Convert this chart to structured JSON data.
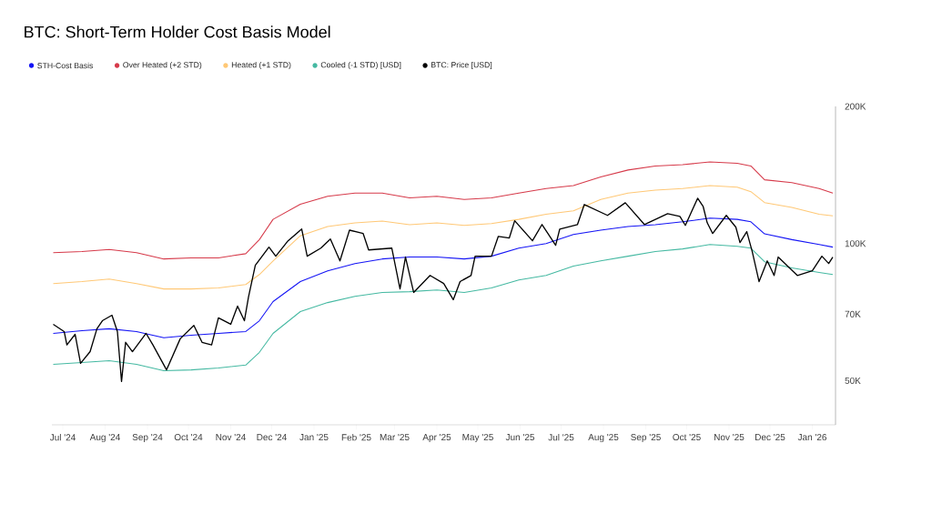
{
  "chart_data": {
    "type": "line",
    "title": "BTC: Short-Term Holder Cost Basis Model",
    "x": [
      "2024-06-24",
      "2024-07-15",
      "2024-08-04",
      "2024-08-24",
      "2024-09-13",
      "2024-10-03",
      "2024-10-23",
      "2024-11-12",
      "2024-11-22",
      "2024-12-02",
      "2024-12-22",
      "2025-01-11",
      "2025-01-31",
      "2025-02-20",
      "2025-03-12",
      "2025-04-01",
      "2025-04-21",
      "2025-05-11",
      "2025-05-31",
      "2025-06-20",
      "2025-07-10",
      "2025-07-30",
      "2025-08-19",
      "2025-09-08",
      "2025-09-28",
      "2025-10-18",
      "2025-11-07",
      "2025-11-17",
      "2025-11-27",
      "2025-12-17",
      "2026-01-06",
      "2026-01-16"
    ],
    "series": [
      {
        "name": "STH-Cost Basis",
        "color": "#1414f5",
        "values": [
          63500,
          64400,
          65000,
          64100,
          62100,
          62900,
          63500,
          64100,
          67700,
          74600,
          82500,
          87100,
          90400,
          92500,
          93400,
          93400,
          92500,
          93800,
          97700,
          100000,
          104700,
          107000,
          109000,
          110000,
          111600,
          113700,
          113000,
          111600,
          105000,
          102000,
          99500,
          98200
        ]
      },
      {
        "name": "Over Heated (+2 STD)",
        "color": "#d63a4a",
        "values": [
          95500,
          96000,
          97000,
          95500,
          92500,
          93000,
          93000,
          95000,
          102000,
          113000,
          122000,
          127000,
          129000,
          129000,
          126000,
          127000,
          125000,
          126000,
          129000,
          132000,
          134000,
          140000,
          145000,
          148000,
          149000,
          151000,
          150000,
          148000,
          138000,
          136000,
          132000,
          129000
        ]
      },
      {
        "name": "Heated (+1 STD)",
        "color": "#ffc876",
        "values": [
          81700,
          82500,
          83600,
          81700,
          79500,
          79500,
          79900,
          81300,
          85500,
          91600,
          104000,
          109000,
          111000,
          112000,
          110000,
          111000,
          109600,
          110600,
          113000,
          116000,
          118000,
          125000,
          129000,
          131000,
          132000,
          134000,
          133000,
          130000,
          123000,
          120000,
          116000,
          115000
        ]
      },
      {
        "name": "Cooled (-1 STD) [USD]",
        "color": "#45b9a2",
        "values": [
          54300,
          54800,
          55300,
          54300,
          52600,
          52800,
          53300,
          54100,
          57700,
          63500,
          70900,
          74200,
          76600,
          78100,
          78400,
          79100,
          78100,
          79900,
          83200,
          85100,
          89200,
          91600,
          93800,
          96000,
          97300,
          99500,
          98600,
          97700,
          91200,
          88400,
          86400,
          85500
        ]
      },
      {
        "name": "BTC: Price [USD]",
        "color": "#000000",
        "x": [
          "2024-06-24",
          "2024-07-02",
          "2024-07-04",
          "2024-07-10",
          "2024-07-14",
          "2024-07-21",
          "2024-07-26",
          "2024-07-30",
          "2024-08-06",
          "2024-08-10",
          "2024-08-13",
          "2024-08-16",
          "2024-08-21",
          "2024-08-31",
          "2024-09-05",
          "2024-09-15",
          "2024-09-25",
          "2024-10-05",
          "2024-10-11",
          "2024-10-18",
          "2024-10-23",
          "2024-11-01",
          "2024-11-06",
          "2024-11-11",
          "2024-11-14",
          "2024-11-19",
          "2024-11-29",
          "2024-12-04",
          "2024-12-13",
          "2024-12-23",
          "2024-12-27",
          "2025-01-06",
          "2025-01-13",
          "2025-01-20",
          "2025-01-27",
          "2025-02-06",
          "2025-02-10",
          "2025-02-27",
          "2025-03-05",
          "2025-03-09",
          "2025-03-15",
          "2025-03-27",
          "2025-04-06",
          "2025-04-13",
          "2025-04-18",
          "2025-04-26",
          "2025-04-29",
          "2025-05-11",
          "2025-05-16",
          "2025-05-24",
          "2025-05-28",
          "2025-06-10",
          "2025-06-17",
          "2025-06-27",
          "2025-06-30",
          "2025-07-13",
          "2025-07-18",
          "2025-08-04",
          "2025-08-17",
          "2025-08-31",
          "2025-09-17",
          "2025-09-26",
          "2025-09-30",
          "2025-10-09",
          "2025-10-13",
          "2025-10-16",
          "2025-10-20",
          "2025-10-30",
          "2025-11-06",
          "2025-11-09",
          "2025-11-14",
          "2025-11-18",
          "2025-11-23",
          "2025-11-29",
          "2025-12-04",
          "2025-12-07",
          "2025-12-21",
          "2026-01-01",
          "2026-01-08",
          "2026-01-13",
          "2026-01-16"
        ],
        "values": [
          66500,
          64100,
          59900,
          63200,
          54600,
          57900,
          65000,
          67700,
          69600,
          64100,
          49800,
          60700,
          57900,
          63500,
          59900,
          52800,
          61800,
          66100,
          60700,
          59900,
          68700,
          66500,
          72900,
          67700,
          76300,
          89600,
          98200,
          93800,
          101400,
          107600,
          93800,
          97700,
          102300,
          91600,
          107000,
          105200,
          96800,
          97700,
          79500,
          93400,
          78100,
          85100,
          81700,
          75300,
          82500,
          85100,
          93800,
          93800,
          103700,
          102800,
          112200,
          101400,
          110100,
          99100,
          107600,
          110100,
          121800,
          115300,
          122900,
          110100,
          116300,
          114700,
          109600,
          125700,
          120700,
          111100,
          105200,
          115300,
          108600,
          100500,
          106200,
          96000,
          82500,
          91600,
          85100,
          93400,
          85100,
          87100,
          93800,
          90400,
          93400
        ]
      }
    ],
    "xlim": [
      "2024-06-23",
      "2026-01-18"
    ],
    "xticks": [
      {
        "value": "2024-07-01",
        "label": "Jul '24"
      },
      {
        "value": "2024-08-01",
        "label": "Aug '24"
      },
      {
        "value": "2024-09-01",
        "label": "Sep '24"
      },
      {
        "value": "2024-10-01",
        "label": "Oct '24"
      },
      {
        "value": "2024-11-01",
        "label": "Nov '24"
      },
      {
        "value": "2024-12-01",
        "label": "Dec '24"
      },
      {
        "value": "2025-01-01",
        "label": "Jan '25"
      },
      {
        "value": "2025-02-01",
        "label": "Feb '25"
      },
      {
        "value": "2025-03-01",
        "label": "Mar '25"
      },
      {
        "value": "2025-04-01",
        "label": "Apr '25"
      },
      {
        "value": "2025-05-01",
        "label": "May '25"
      },
      {
        "value": "2025-06-01",
        "label": "Jun '25"
      },
      {
        "value": "2025-07-01",
        "label": "Jul '25"
      },
      {
        "value": "2025-08-01",
        "label": "Aug '25"
      },
      {
        "value": "2025-09-01",
        "label": "Sep '25"
      },
      {
        "value": "2025-10-01",
        "label": "Oct '25"
      },
      {
        "value": "2025-11-01",
        "label": "Nov '25"
      },
      {
        "value": "2025-12-01",
        "label": "Dec '25"
      },
      {
        "value": "2026-01-01",
        "label": "Jan '26"
      }
    ],
    "ylim": [
      40000,
      200000
    ],
    "yticks": [
      {
        "value": 50000,
        "label": "50K"
      },
      {
        "value": 70000,
        "label": "70K"
      },
      {
        "value": 100000,
        "label": "100K"
      },
      {
        "value": 200000,
        "label": "200K"
      }
    ],
    "log": true,
    "legend": "top left"
  }
}
